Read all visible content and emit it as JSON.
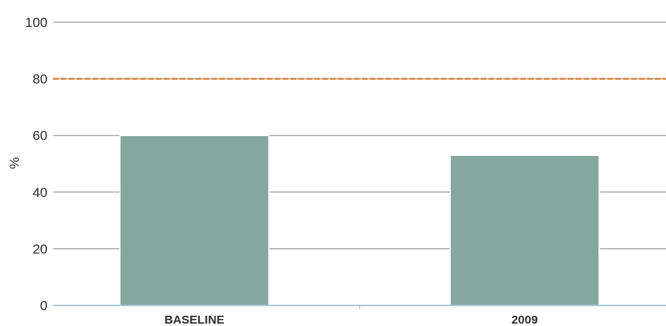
{
  "chart_data": {
    "type": "bar",
    "categories": [
      "BASELINE",
      "2009"
    ],
    "values": [
      60,
      53
    ],
    "ylabel": "%",
    "xlabel": "",
    "ylim": [
      0,
      100
    ],
    "yticks": [
      0,
      20,
      40,
      60,
      80,
      100
    ],
    "target_line": {
      "value": 80,
      "style": "dashed",
      "color": "#E8883A"
    },
    "grid": true,
    "legend": "none",
    "colors": {
      "bar": "#84A89E",
      "grid": "#8C8C8C",
      "axis": "#9BBBD0"
    }
  }
}
